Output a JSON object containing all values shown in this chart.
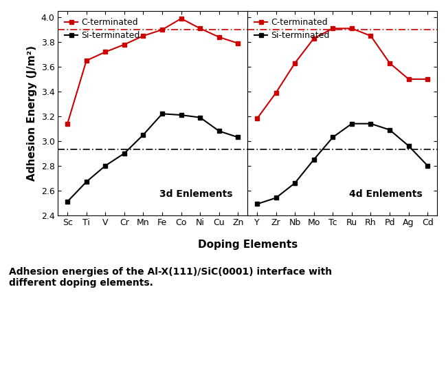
{
  "left_elements": [
    "Sc",
    "Ti",
    "V",
    "Cr",
    "Mn",
    "Fe",
    "Co",
    "Ni",
    "Cu",
    "Zn"
  ],
  "left_C_terminated": [
    3.14,
    3.65,
    3.72,
    3.78,
    3.85,
    3.9,
    3.99,
    3.91,
    3.84,
    3.79
  ],
  "left_Si_terminated": [
    2.51,
    2.67,
    2.8,
    2.9,
    3.05,
    3.22,
    3.21,
    3.19,
    3.08,
    3.03
  ],
  "right_elements": [
    "Y",
    "Zr",
    "Nb",
    "Mo",
    "Tc",
    "Ru",
    "Rh",
    "Pd",
    "Ag",
    "Cd"
  ],
  "right_C_terminated": [
    3.18,
    3.39,
    3.63,
    3.83,
    3.91,
    3.91,
    3.85,
    3.63,
    3.5,
    3.5
  ],
  "right_Si_terminated": [
    2.49,
    2.54,
    2.66,
    2.85,
    3.03,
    3.14,
    3.14,
    3.09,
    2.96,
    2.8
  ],
  "hline_red": 3.9,
  "hline_black": 2.93,
  "color_red": "#CC0000",
  "color_black": "#000000",
  "ylim": [
    2.4,
    4.05
  ],
  "ylabel": "Adhesion Energy (J/m²)",
  "xlabel": "Doping Elements",
  "left_label": "3d Enlements",
  "right_label": "4d Enlements",
  "legend_C": "C-terminated",
  "legend_Si": "Si-terminated",
  "caption": "Adhesion energies of the Al-X(111)/SiC(0001) interface with\ndifferent doping elements.",
  "yticks": [
    2.4,
    2.6,
    2.8,
    3.0,
    3.2,
    3.4,
    3.6,
    3.8,
    4.0
  ],
  "tick_fontsize": 9,
  "label_fontsize": 11,
  "legend_fontsize": 9,
  "annot_fontsize": 10,
  "caption_fontsize": 10
}
